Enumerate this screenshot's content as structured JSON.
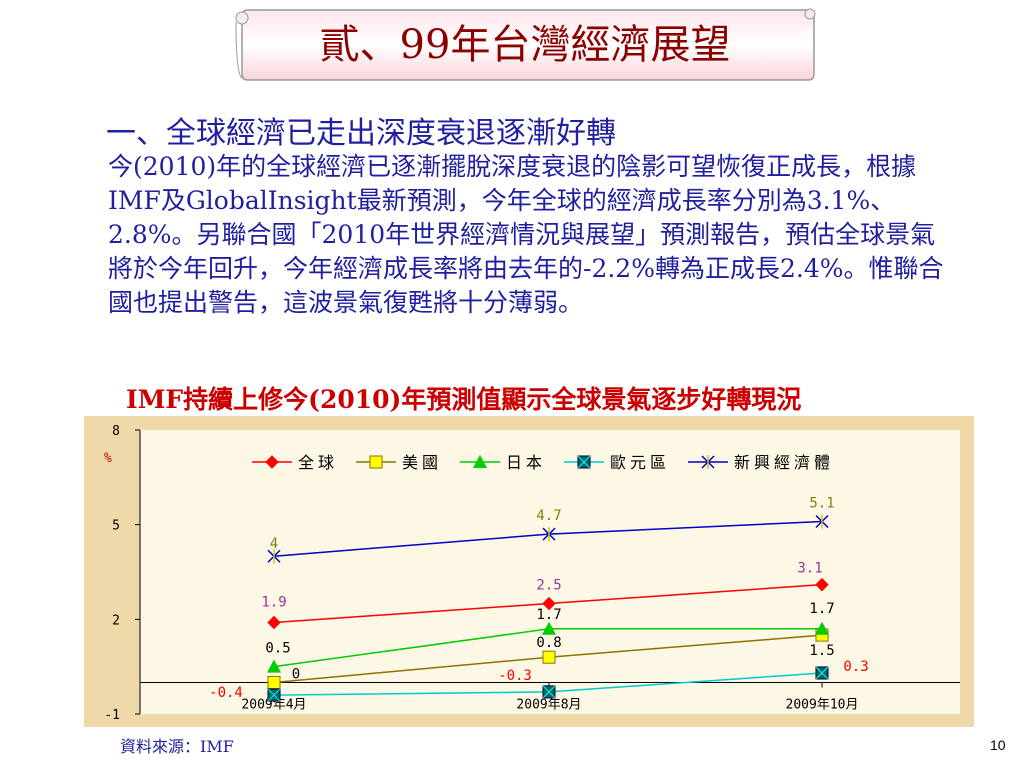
{
  "slide": {
    "title": "貳、99年台灣經濟展望",
    "heading": "一、全球經濟已走出深度衰退逐漸好轉",
    "paragraph": "今(2010)年的全球經濟已逐漸擺脫深度衰退的陰影可望恢復正成長，根據IMF及GlobalInsight最新預測，今年全球的經濟成長率分別為3.1%、2.8%。另聯合國「2010年世界經濟情況與展望」預測報告，預估全球景氣將於今年回升，今年經濟成長率將由去年的-2.2%轉為正成長2.4%。惟聯合國也提出警告，這波景氣復甦將十分薄弱。",
    "chart_title": "IMF持續上修今(2010)年預測值顯示全球景氣逐步好轉現況",
    "source": "資料來源：IMF",
    "page_number": "10"
  },
  "chart_data": {
    "type": "line",
    "title": "IMF持續上修今(2010)年預測值顯示全球景氣逐步好轉現況",
    "xlabel": "",
    "ylabel": "%",
    "categories": [
      "2009年4月",
      "2009年8月",
      "2009年10月"
    ],
    "ylim": [
      -1,
      8
    ],
    "yticks": [
      "8",
      "5",
      "2",
      "-1"
    ],
    "legend_position": "top",
    "background": "#f0d9a8",
    "plot_background": "#fdf7e6",
    "series": [
      {
        "name": "全球",
        "color": "#ff0000",
        "marker": "diamond",
        "values": [
          1.9,
          2.5,
          3.1
        ],
        "labels": [
          "1.9",
          "2.5",
          "3.1"
        ],
        "label_color": "#993399"
      },
      {
        "name": "美國",
        "color": "#8b7300",
        "marker": "square",
        "marker_fill": "#ffff00",
        "values": [
          0,
          0.8,
          1.5
        ],
        "labels": [
          "0",
          "0.8",
          "1.5"
        ],
        "label_color": "#000000"
      },
      {
        "name": "日本",
        "color": "#00cc00",
        "marker": "triangle",
        "values": [
          0.5,
          1.7,
          1.7
        ],
        "labels": [
          "0.5",
          "1.7",
          "1.7"
        ],
        "label_color": "#000000"
      },
      {
        "name": "歐元區",
        "color": "#00cccc",
        "marker": "xsquare",
        "marker_fill": "#006666",
        "values": [
          -0.4,
          -0.3,
          0.3
        ],
        "labels": [
          "-0.4",
          "-0.3",
          "0.3"
        ],
        "label_color": "#ff0000"
      },
      {
        "name": "新興經濟體",
        "color": "#0000cc",
        "marker": "asterisk",
        "marker_color": "#cccc00",
        "values": [
          4,
          4.7,
          5.1
        ],
        "labels": [
          "4",
          "4.7",
          "5.1"
        ],
        "label_color": "#808000"
      }
    ]
  }
}
